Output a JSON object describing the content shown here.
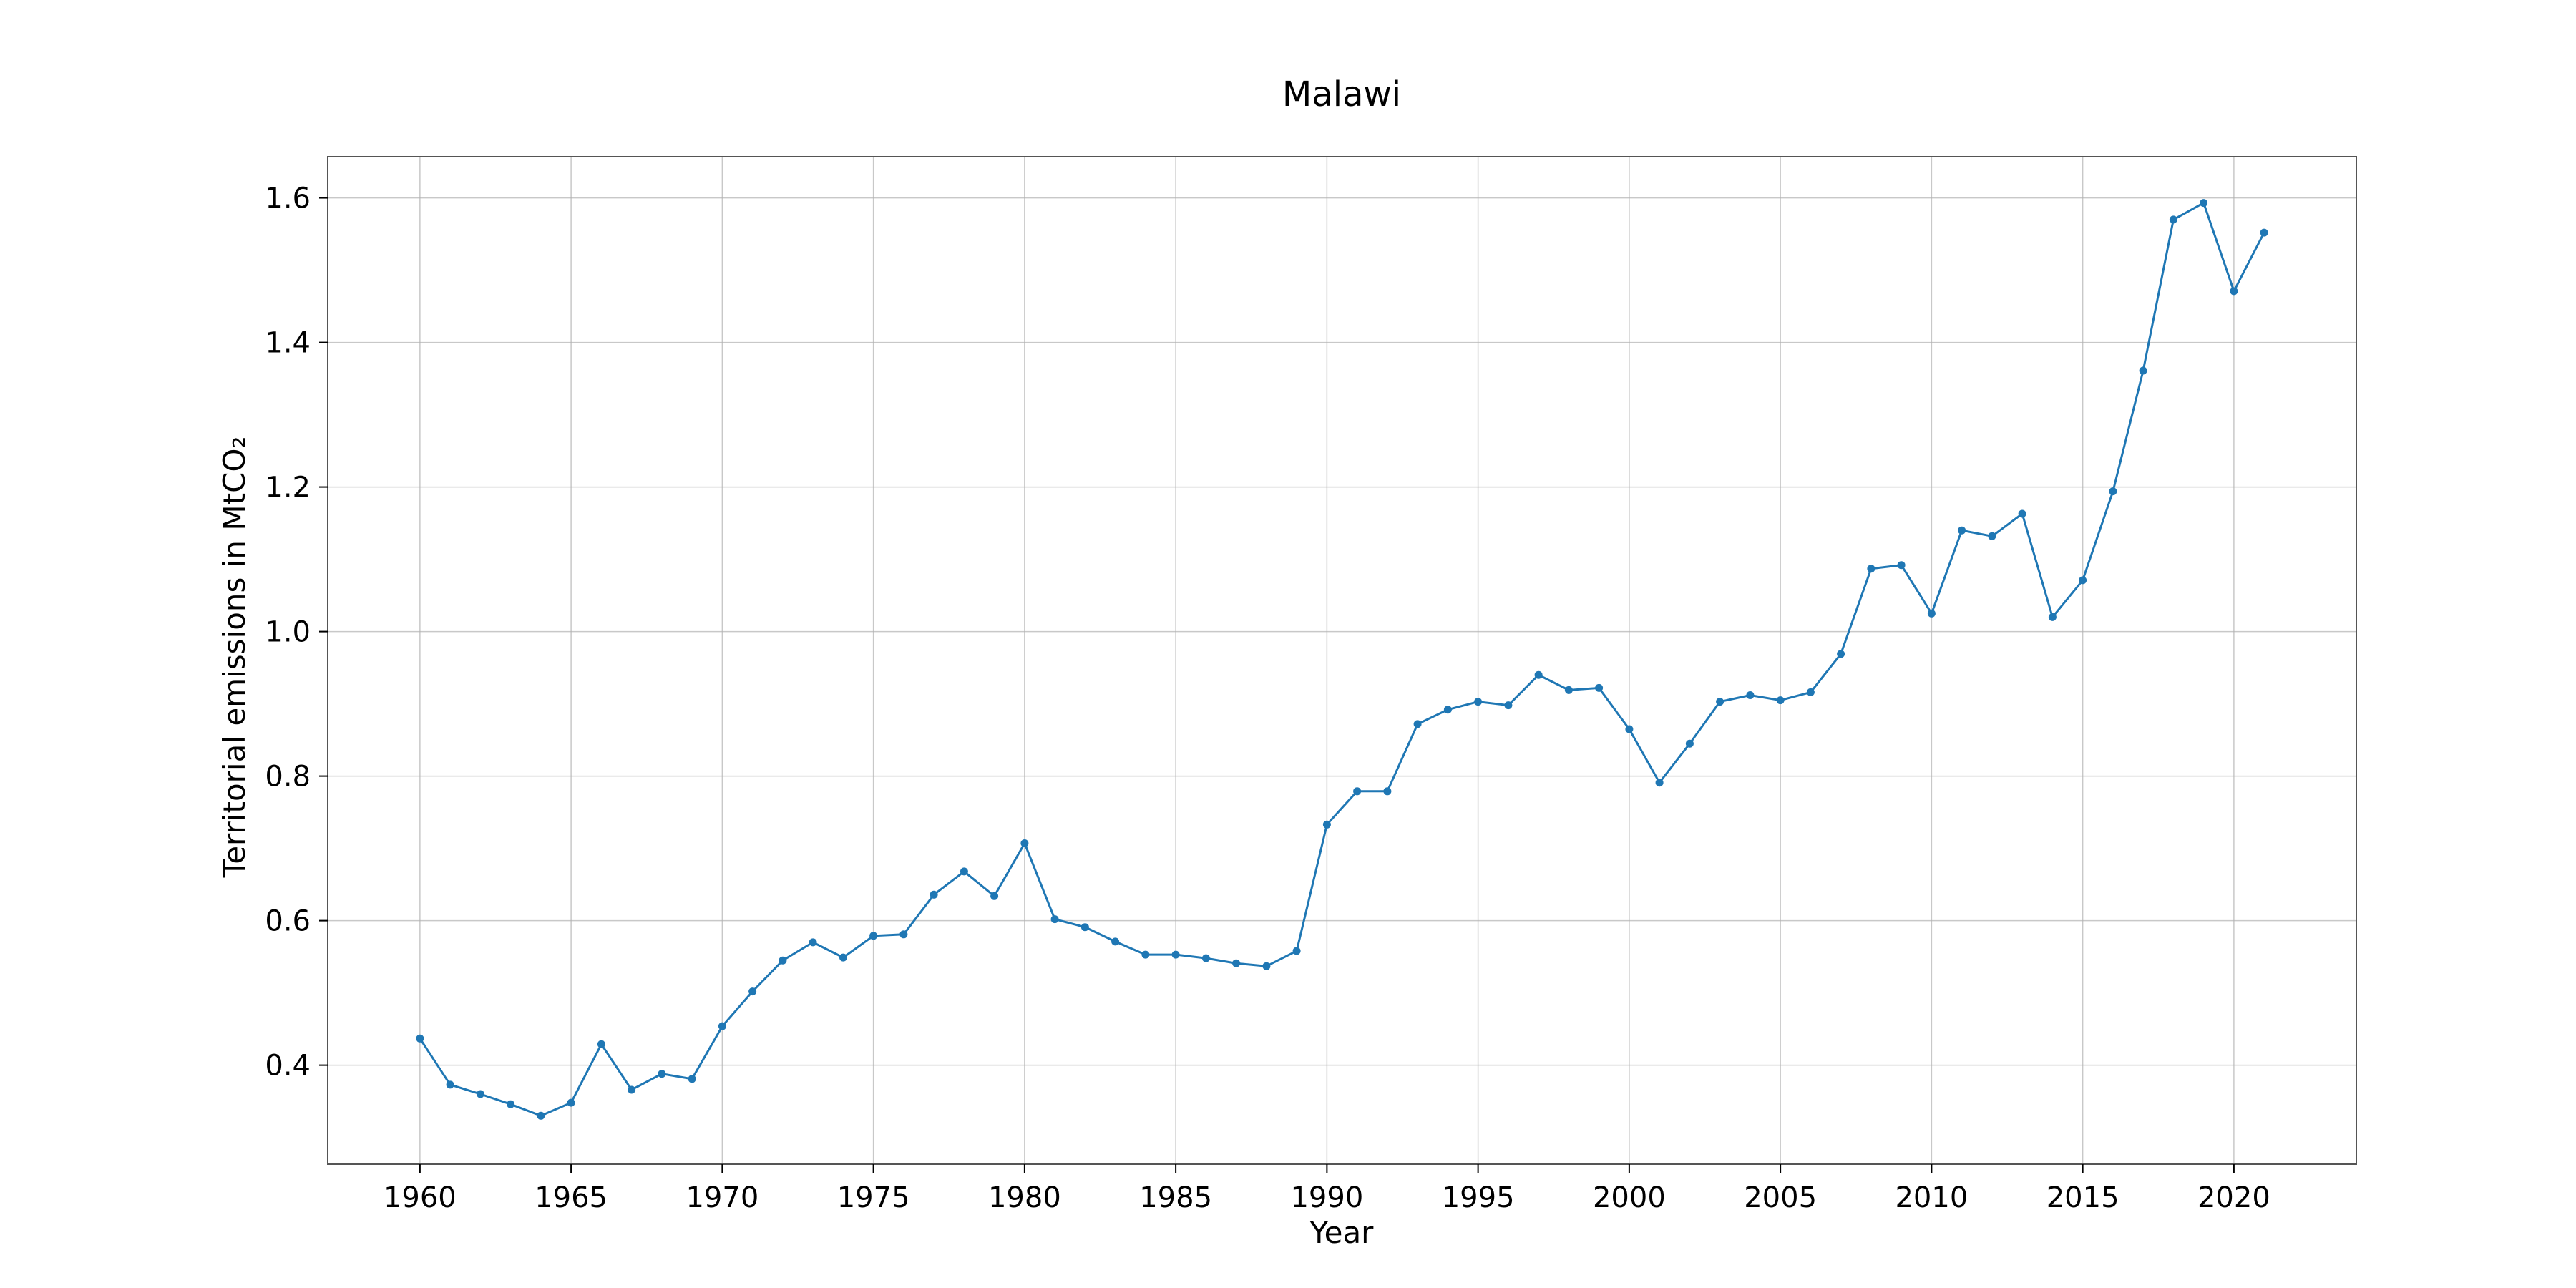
{
  "chart_data": {
    "type": "line",
    "title": "Malawi",
    "xlabel": "Year",
    "ylabel": "Territorial emissions in MtCO₂",
    "xlim": [
      1956.95,
      2024.05
    ],
    "ylim": [
      0.263,
      1.657
    ],
    "grid": true,
    "legend": "none",
    "color": "#1f77b4",
    "xticks": [
      1960,
      1965,
      1970,
      1975,
      1980,
      1985,
      1990,
      1995,
      2000,
      2005,
      2010,
      2015,
      2020
    ],
    "yticks": [
      0.4,
      0.6,
      0.8,
      1.0,
      1.2,
      1.4,
      1.6
    ],
    "ytick_labels": [
      "0.4",
      "0.6",
      "0.8",
      "1.0",
      "1.2",
      "1.4",
      "1.6"
    ],
    "x": [
      1960,
      1961,
      1962,
      1963,
      1964,
      1965,
      1966,
      1967,
      1968,
      1969,
      1970,
      1971,
      1972,
      1973,
      1974,
      1975,
      1976,
      1977,
      1978,
      1979,
      1980,
      1981,
      1982,
      1983,
      1984,
      1985,
      1986,
      1987,
      1988,
      1989,
      1990,
      1991,
      1992,
      1993,
      1994,
      1995,
      1996,
      1997,
      1998,
      1999,
      2000,
      2001,
      2002,
      2003,
      2004,
      2005,
      2006,
      2007,
      2008,
      2009,
      2010,
      2011,
      2012,
      2013,
      2014,
      2015,
      2016,
      2017,
      2018,
      2019,
      2020,
      2021
    ],
    "y": [
      0.437,
      0.373,
      0.36,
      0.346,
      0.33,
      0.348,
      0.429,
      0.366,
      0.388,
      0.381,
      0.454,
      0.502,
      0.545,
      0.57,
      0.549,
      0.579,
      0.581,
      0.636,
      0.668,
      0.634,
      0.707,
      0.602,
      0.591,
      0.571,
      0.553,
      0.553,
      0.548,
      0.541,
      0.537,
      0.558,
      0.733,
      0.779,
      0.779,
      0.872,
      0.892,
      0.903,
      0.898,
      0.94,
      0.919,
      0.922,
      0.865,
      0.791,
      0.845,
      0.903,
      0.912,
      0.905,
      0.916,
      0.969,
      1.087,
      1.092,
      1.025,
      1.14,
      1.132,
      1.163,
      1.02,
      1.071,
      1.194,
      1.361,
      1.57,
      1.593,
      1.471,
      1.552
    ]
  }
}
